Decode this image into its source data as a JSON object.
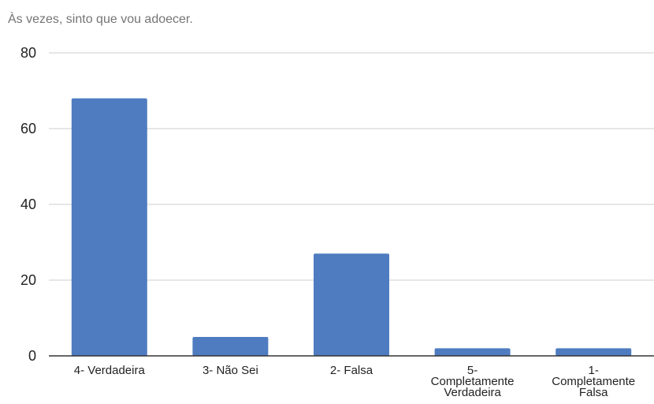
{
  "chart_data": {
    "type": "bar",
    "title": "Às vezes, sinto que vou adoecer.",
    "categories": [
      [
        "4- Verdadeira"
      ],
      [
        "3- Não Sei"
      ],
      [
        "2- Falsa"
      ],
      [
        "5-",
        "Completamente",
        "Verdadeira"
      ],
      [
        "1-",
        "Completamente",
        "Falsa"
      ]
    ],
    "values": [
      68,
      5,
      27,
      2,
      2
    ],
    "ylim": [
      0,
      80
    ],
    "yticks": [
      "0",
      "20",
      "40",
      "60",
      "80"
    ],
    "xlabel": "",
    "ylabel": "",
    "grid": true,
    "legend": "none",
    "colors": {
      "bar": "#4f7cc0",
      "grid": "#cccccc",
      "axis": "#333333"
    }
  }
}
